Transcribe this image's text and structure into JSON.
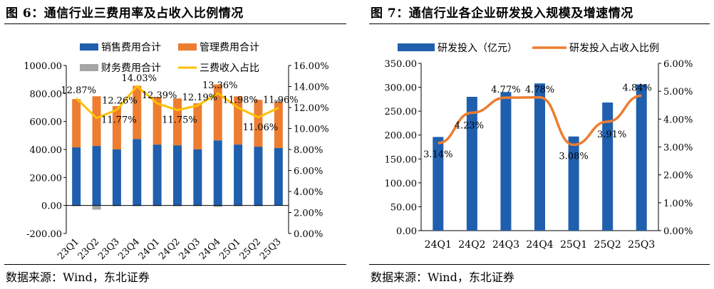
{
  "charts_page": {
    "left": {
      "figure_title": "图 6：通信行业三费用率及占收入比例情况",
      "source": "数据来源：Wind，东北证券"
    },
    "right": {
      "figure_title": "图 7：通信行业各企业研发投入规模及增速情况",
      "source": "数据来源：Wind，东北证券"
    }
  },
  "colors": {
    "sales": "#1f5fae",
    "admin": "#ed7d31",
    "finance": "#a5a5a5",
    "ratio_line": "#ffc000",
    "rd_bar": "#1f5fae",
    "rd_line": "#ed7d31"
  },
  "chart_data": [
    {
      "type": "bar",
      "stacked": true,
      "title": "通信行业三费用率及占收入比例情况",
      "categories": [
        "23Q1",
        "23Q2",
        "23Q3",
        "23Q4",
        "24Q1",
        "24Q2",
        "24Q3",
        "24Q4",
        "25Q1",
        "25Q2",
        "25Q3"
      ],
      "series": [
        {
          "name": "销售费用合计",
          "kind": "bar",
          "values": [
            415,
            425,
            400,
            475,
            435,
            430,
            400,
            465,
            435,
            420,
            410
          ]
        },
        {
          "name": "管理费用合计",
          "kind": "bar",
          "values": [
            345,
            355,
            310,
            380,
            340,
            335,
            330,
            400,
            345,
            335,
            330
          ]
        },
        {
          "name": "财务费用合计",
          "kind": "bar",
          "values": [
            -5,
            -30,
            -5,
            -5,
            -5,
            -5,
            -5,
            -10,
            -5,
            -5,
            15
          ]
        },
        {
          "name": "三费收入占比",
          "kind": "line",
          "axis": "right",
          "values": [
            12.87,
            11.0,
            11.77,
            14.03,
            12.39,
            11.75,
            12.19,
            13.36,
            11.98,
            11.06,
            11.96
          ],
          "labels": [
            "12.87%",
            "",
            "11.77%",
            "14.03%",
            "12.39%",
            "11.75%",
            "12.19%",
            "13.36%",
            "11.98%",
            "11.06%",
            "11.96%"
          ],
          "extra_labels": [
            "12.26%"
          ]
        }
      ],
      "ylim": [
        -200,
        1000
      ],
      "yticks": [
        "-200.00",
        "0.00",
        "200.00",
        "400.00",
        "600.00",
        "800.00",
        "1000.00"
      ],
      "y2lim": [
        0,
        16
      ],
      "y2ticks": [
        "0.00%",
        "2.00%",
        "4.00%",
        "6.00%",
        "8.00%",
        "10.00%",
        "12.00%",
        "14.00%",
        "16.00%"
      ],
      "legend_position": "top"
    },
    {
      "type": "bar",
      "title": "通信行业各企业研发投入规模及增速情况",
      "categories": [
        "24Q1",
        "24Q2",
        "24Q3",
        "24Q4",
        "25Q1",
        "25Q2",
        "25Q3"
      ],
      "series": [
        {
          "name": "研发投入（亿元）",
          "kind": "bar",
          "values": [
            196,
            280,
            290,
            308,
            197,
            268,
            306
          ]
        },
        {
          "name": "研发投入占收入比例",
          "kind": "line",
          "axis": "right",
          "values": [
            3.14,
            4.23,
            4.77,
            4.78,
            3.08,
            3.91,
            4.84
          ],
          "labels": [
            "3.14%",
            "4.23%",
            "4.77%",
            "4.78%",
            "3.08%",
            "3.91%",
            "4.84%"
          ]
        }
      ],
      "ylim": [
        0,
        350
      ],
      "yticks": [
        "0.00",
        "50.00",
        "100.00",
        "150.00",
        "200.00",
        "250.00",
        "300.00",
        "350.00"
      ],
      "y2lim": [
        0,
        6
      ],
      "y2ticks": [
        "0.00%",
        "1.00%",
        "2.00%",
        "3.00%",
        "4.00%",
        "5.00%",
        "6.00%"
      ],
      "legend_position": "top"
    }
  ]
}
